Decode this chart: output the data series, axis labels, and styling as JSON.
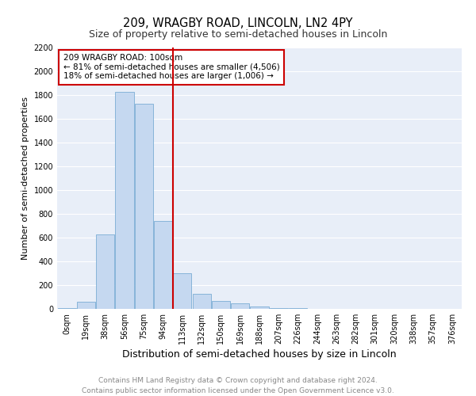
{
  "title": "209, WRAGBY ROAD, LINCOLN, LN2 4PY",
  "subtitle": "Size of property relative to semi-detached houses in Lincoln",
  "xlabel": "Distribution of semi-detached houses by size in Lincoln",
  "ylabel": "Number of semi-detached properties",
  "bar_labels": [
    "0sqm",
    "19sqm",
    "38sqm",
    "56sqm",
    "75sqm",
    "94sqm",
    "113sqm",
    "132sqm",
    "150sqm",
    "169sqm",
    "188sqm",
    "207sqm",
    "226sqm",
    "244sqm",
    "263sqm",
    "282sqm",
    "301sqm",
    "320sqm",
    "338sqm",
    "357sqm",
    "376sqm"
  ],
  "bar_values": [
    10,
    60,
    630,
    1830,
    1730,
    740,
    300,
    130,
    65,
    45,
    20,
    10,
    5,
    0,
    0,
    0,
    0,
    0,
    0,
    0,
    0
  ],
  "bar_color": "#c5d8f0",
  "bar_edgecolor": "#7aadd4",
  "background_color": "#e8eef8",
  "grid_color": "#ffffff",
  "property_line_x": 5.5,
  "annotation_line1": "209 WRAGBY ROAD: 100sqm",
  "annotation_line2": "← 81% of semi-detached houses are smaller (4,506)",
  "annotation_line3": "18% of semi-detached houses are larger (1,006) →",
  "annotation_box_facecolor": "#ffffff",
  "annotation_box_edgecolor": "#cc0000",
  "vline_color": "#cc0000",
  "ylim": [
    0,
    2200
  ],
  "yticks": [
    0,
    200,
    400,
    600,
    800,
    1000,
    1200,
    1400,
    1600,
    1800,
    2000,
    2200
  ],
  "footer_line1": "Contains HM Land Registry data © Crown copyright and database right 2024.",
  "footer_line2": "Contains public sector information licensed under the Open Government Licence v3.0.",
  "title_fontsize": 10.5,
  "subtitle_fontsize": 9,
  "xlabel_fontsize": 9,
  "ylabel_fontsize": 8,
  "tick_fontsize": 7,
  "footer_fontsize": 6.5,
  "annotation_fontsize": 7.5
}
